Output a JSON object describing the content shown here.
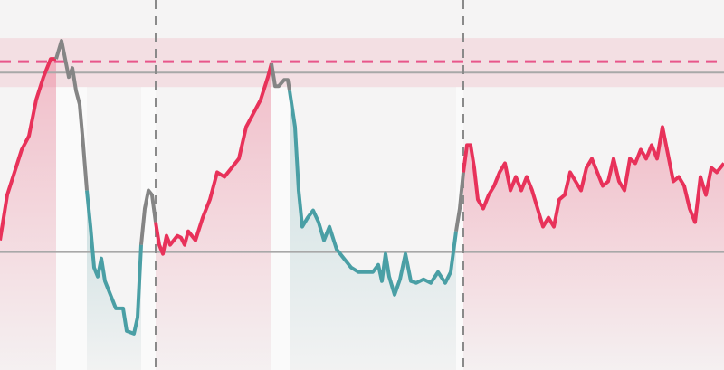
{
  "chart_data": {
    "type": "line",
    "title": "",
    "xlabel": "",
    "ylabel": "",
    "xlim": [
      0,
      100
    ],
    "ylim": [
      -2,
      100
    ],
    "grid": false,
    "legend": "none",
    "colors": {
      "up": "#e8325a",
      "neutral": "#858585",
      "down": "#4a9fa5",
      "band": "#f3dfe3",
      "dashed_level": "#e8568a",
      "ref_line": "#a8a8a8",
      "divider": "#8a8a8a",
      "background": "#f5f4f4"
    },
    "band": [
      76,
      89.5
    ],
    "dashed_level": 83,
    "reference_lines": [
      80,
      30.5
    ],
    "vertical_dividers": [
      21.5,
      64
    ],
    "regimes": [
      {
        "from": 0,
        "to": 7.75,
        "state": "up"
      },
      {
        "from": 7.75,
        "to": 12,
        "state": "neutral"
      },
      {
        "from": 12,
        "to": 19.5,
        "state": "down"
      },
      {
        "from": 19.5,
        "to": 21.5,
        "state": "neutral"
      },
      {
        "from": 21.5,
        "to": 37.5,
        "state": "up"
      },
      {
        "from": 37.5,
        "to": 40,
        "state": "neutral"
      },
      {
        "from": 40,
        "to": 63,
        "state": "down"
      },
      {
        "from": 63,
        "to": 64,
        "state": "neutral"
      },
      {
        "from": 64,
        "to": 100,
        "state": "up"
      }
    ],
    "points": [
      [
        0,
        33.75
      ],
      [
        1,
        46.25
      ],
      [
        2,
        52.5
      ],
      [
        3,
        58.75
      ],
      [
        4,
        62.5
      ],
      [
        5,
        72.5
      ],
      [
        6,
        78.75
      ],
      [
        7,
        83.75
      ],
      [
        7.75,
        83.75
      ],
      [
        8.5,
        88.75
      ],
      [
        9,
        83.75
      ],
      [
        9.5,
        78.75
      ],
      [
        10,
        81.25
      ],
      [
        10.5,
        75
      ],
      [
        11,
        71.25
      ],
      [
        11.5,
        60
      ],
      [
        12,
        47.5
      ],
      [
        12.5,
        37.5
      ],
      [
        13,
        26.25
      ],
      [
        13.5,
        23.75
      ],
      [
        14,
        28.75
      ],
      [
        14.5,
        22.5
      ],
      [
        15,
        20
      ],
      [
        16,
        15
      ],
      [
        17,
        15
      ],
      [
        17.5,
        8.75
      ],
      [
        18.5,
        8
      ],
      [
        19,
        12.5
      ],
      [
        19.5,
        32.5
      ],
      [
        20,
        42.5
      ],
      [
        20.5,
        47.5
      ],
      [
        21,
        46.25
      ],
      [
        21.5,
        38.75
      ],
      [
        22,
        32.5
      ],
      [
        22.5,
        30
      ],
      [
        23,
        35
      ],
      [
        23.5,
        32.5
      ],
      [
        24,
        33.75
      ],
      [
        24.5,
        35
      ],
      [
        25,
        34.5
      ],
      [
        25.5,
        32.5
      ],
      [
        26,
        36.25
      ],
      [
        27,
        33.75
      ],
      [
        28,
        40
      ],
      [
        29,
        45
      ],
      [
        30,
        52.5
      ],
      [
        31,
        51.25
      ],
      [
        32,
        53.75
      ],
      [
        33,
        56.25
      ],
      [
        34,
        65
      ],
      [
        35,
        68.75
      ],
      [
        36,
        72.5
      ],
      [
        37,
        78.75
      ],
      [
        37.5,
        82.5
      ],
      [
        38,
        76.25
      ],
      [
        38.5,
        76.25
      ],
      [
        39.25,
        78
      ],
      [
        39.75,
        78
      ],
      [
        40,
        75
      ],
      [
        40.75,
        65
      ],
      [
        41.25,
        47.5
      ],
      [
        41.75,
        37.5
      ],
      [
        42.5,
        40
      ],
      [
        43.25,
        42
      ],
      [
        44,
        38.75
      ],
      [
        44.75,
        33.75
      ],
      [
        45.5,
        37.5
      ],
      [
        46.5,
        31.25
      ],
      [
        47.5,
        28.75
      ],
      [
        48.5,
        26.25
      ],
      [
        49.5,
        25
      ],
      [
        50.5,
        25
      ],
      [
        51.5,
        25
      ],
      [
        52.25,
        27
      ],
      [
        52.75,
        22.5
      ],
      [
        53.25,
        30
      ],
      [
        53.75,
        23.75
      ],
      [
        54.5,
        18.75
      ],
      [
        55.25,
        23
      ],
      [
        56,
        30
      ],
      [
        56.75,
        22.5
      ],
      [
        57.5,
        22
      ],
      [
        58.5,
        23
      ],
      [
        59.5,
        22
      ],
      [
        60.5,
        25
      ],
      [
        61.5,
        22
      ],
      [
        62.25,
        25
      ],
      [
        63,
        36.25
      ],
      [
        63.5,
        42.5
      ],
      [
        64,
        52.5
      ],
      [
        64.5,
        60
      ],
      [
        65,
        60
      ],
      [
        65.5,
        53.75
      ],
      [
        66,
        45
      ],
      [
        66.75,
        42.5
      ],
      [
        67.5,
        46.25
      ],
      [
        68.25,
        48.75
      ],
      [
        69,
        52.5
      ],
      [
        69.75,
        55
      ],
      [
        70.5,
        47.5
      ],
      [
        71.25,
        51.25
      ],
      [
        72,
        47.5
      ],
      [
        72.75,
        51.25
      ],
      [
        73.5,
        47.5
      ],
      [
        74.25,
        42.5
      ],
      [
        75,
        37.5
      ],
      [
        75.75,
        40
      ],
      [
        76.5,
        37.5
      ],
      [
        77.25,
        45
      ],
      [
        78,
        46.25
      ],
      [
        78.75,
        52.5
      ],
      [
        79.5,
        50
      ],
      [
        80.25,
        47.5
      ],
      [
        81,
        53.75
      ],
      [
        81.75,
        56.25
      ],
      [
        82.5,
        52.5
      ],
      [
        83.25,
        48.75
      ],
      [
        84,
        50
      ],
      [
        84.75,
        56.25
      ],
      [
        85.5,
        50
      ],
      [
        86.25,
        47.5
      ],
      [
        87,
        56.25
      ],
      [
        87.75,
        55
      ],
      [
        88.5,
        58.75
      ],
      [
        89.25,
        56.25
      ],
      [
        90,
        60
      ],
      [
        90.75,
        56.25
      ],
      [
        91.5,
        65
      ],
      [
        92.25,
        57.5
      ],
      [
        93,
        50
      ],
      [
        93.75,
        51.25
      ],
      [
        94.5,
        48.75
      ],
      [
        95.25,
        42.5
      ],
      [
        96,
        38.75
      ],
      [
        96.75,
        51.25
      ],
      [
        97.5,
        46.25
      ],
      [
        98.25,
        53.75
      ],
      [
        99,
        52.5
      ],
      [
        100,
        55
      ]
    ]
  }
}
